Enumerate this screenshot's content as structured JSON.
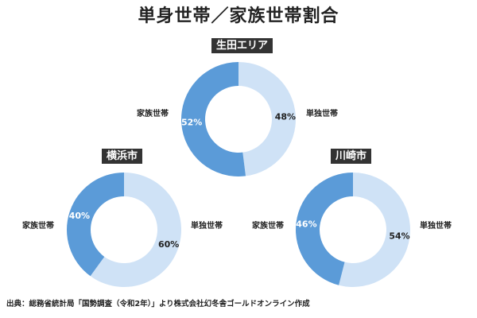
{
  "title": "単身世帯／家族世帯割合",
  "source": "出典：総務省統計局「国勢調査（令和2年）」より株式会社幻冬舎ゴールドオンライン作成",
  "colors": {
    "single": "#cfe2f6",
    "family": "#5b9bd8",
    "label_bg": "#333333",
    "pct_family": "#ffffff",
    "pct_single": "#222222"
  },
  "chart_data": [
    {
      "type": "pie",
      "region": "生田エリア",
      "categories": [
        "単独世帯",
        "家族世帯"
      ],
      "values": [
        48,
        52
      ],
      "value_labels": [
        "48%",
        "52%"
      ]
    },
    {
      "type": "pie",
      "region": "横浜市",
      "categories": [
        "単独世帯",
        "家族世帯"
      ],
      "values": [
        60,
        40
      ],
      "value_labels": [
        "60%",
        "40%"
      ]
    },
    {
      "type": "pie",
      "region": "川崎市",
      "categories": [
        "単独世帯",
        "家族世帯"
      ],
      "values": [
        54,
        46
      ],
      "value_labels": [
        "54%",
        "46%"
      ]
    }
  ]
}
